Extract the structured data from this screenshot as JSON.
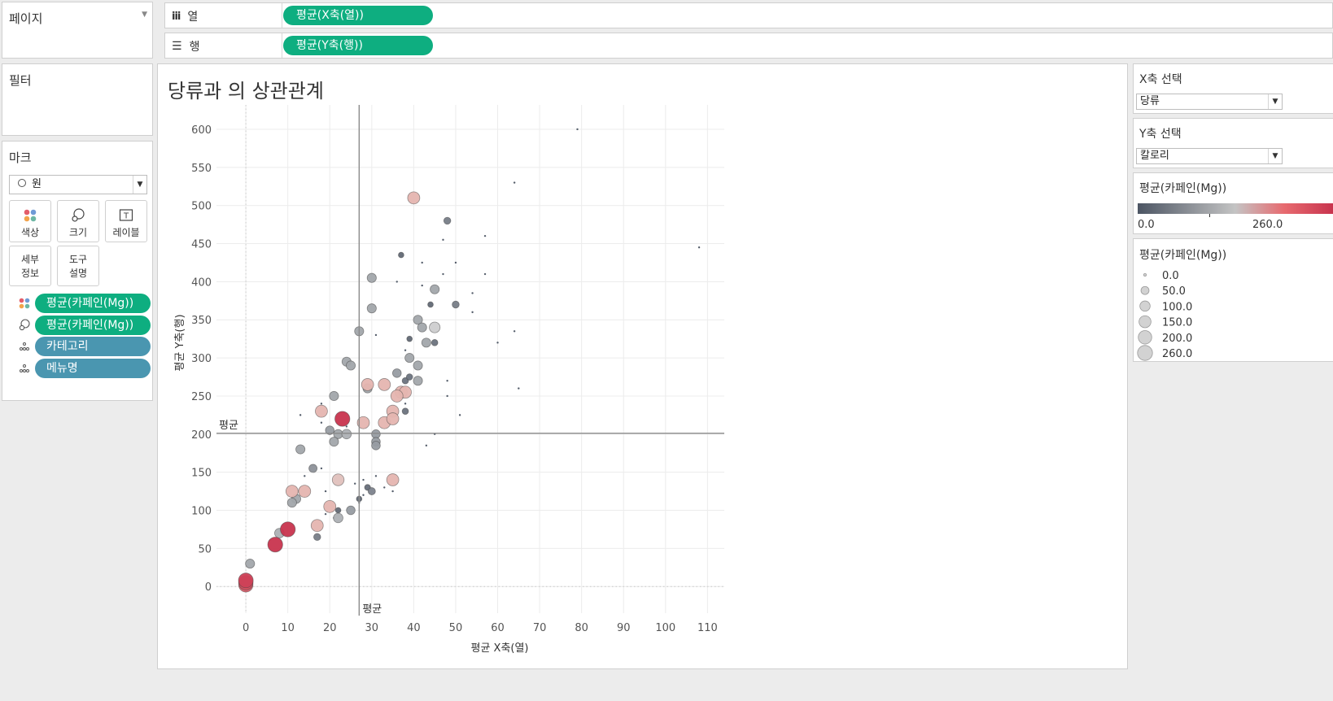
{
  "pages_card": {
    "title": "페이지"
  },
  "shelves": {
    "columns": {
      "label": "열",
      "pill": "평균(X축(열))"
    },
    "rows": {
      "label": "행",
      "pill": "평균(Y축(행))"
    }
  },
  "filters_card": {
    "title": "필터"
  },
  "marks_card": {
    "title": "마크",
    "mark_type": "원",
    "buttons": {
      "color": "색상",
      "size": "크기",
      "label": "레이블",
      "detail_1": "세부",
      "detail_2": "정보",
      "tooltip_1": "도구",
      "tooltip_2": "설명"
    },
    "fields": [
      {
        "icon": "color-icon",
        "label": "평균(카페인(Mg))",
        "color": "#0eae80"
      },
      {
        "icon": "size-icon",
        "label": "평균(카페인(Mg))",
        "color": "#0eae80"
      },
      {
        "icon": "detail-icon",
        "label": "카테고리",
        "color": "#4a96b0"
      },
      {
        "icon": "detail-icon",
        "label": "메뉴명",
        "color": "#4a96b0"
      }
    ]
  },
  "sheet": {
    "title": "당류과 의 상관관계",
    "ref_label_x": "평균",
    "ref_label_y": "평균"
  },
  "chart_data": {
    "type": "scatter",
    "xlabel": "평균 X축(열)",
    "ylabel": "평균 Y축(행)",
    "xlim": [
      -7,
      114
    ],
    "ylim": [
      -35,
      632
    ],
    "x_ticks": [
      0,
      10,
      20,
      30,
      40,
      50,
      60,
      70,
      80,
      90,
      100,
      110
    ],
    "y_ticks": [
      0,
      50,
      100,
      150,
      200,
      250,
      300,
      350,
      400,
      450,
      500,
      550,
      600
    ],
    "reference_lines": {
      "x_average": 27,
      "y_average": 201
    },
    "grid": true,
    "size_field": "caffeine_mg",
    "color_field": "caffeine_mg",
    "color_range": [
      "#4c5563",
      "#d8d8d8",
      "#c8344e"
    ],
    "points": [
      {
        "x": 79,
        "y": 600,
        "caffeine_mg": 0
      },
      {
        "x": 108,
        "y": 445,
        "caffeine_mg": 0
      },
      {
        "x": 64,
        "y": 530,
        "caffeine_mg": 0
      },
      {
        "x": 57,
        "y": 460,
        "caffeine_mg": 0
      },
      {
        "x": 47,
        "y": 455,
        "caffeine_mg": 0
      },
      {
        "x": 42,
        "y": 425,
        "caffeine_mg": 0
      },
      {
        "x": 50,
        "y": 425,
        "caffeine_mg": 0
      },
      {
        "x": 47,
        "y": 410,
        "caffeine_mg": 0
      },
      {
        "x": 57,
        "y": 410,
        "caffeine_mg": 0
      },
      {
        "x": 36,
        "y": 400,
        "caffeine_mg": 0
      },
      {
        "x": 42,
        "y": 395,
        "caffeine_mg": 0
      },
      {
        "x": 54,
        "y": 385,
        "caffeine_mg": 0
      },
      {
        "x": 54,
        "y": 360,
        "caffeine_mg": 0
      },
      {
        "x": 64,
        "y": 335,
        "caffeine_mg": 0
      },
      {
        "x": 31,
        "y": 330,
        "caffeine_mg": 0
      },
      {
        "x": 60,
        "y": 320,
        "caffeine_mg": 0
      },
      {
        "x": 38,
        "y": 310,
        "caffeine_mg": 0
      },
      {
        "x": 48,
        "y": 270,
        "caffeine_mg": 0
      },
      {
        "x": 65,
        "y": 260,
        "caffeine_mg": 0
      },
      {
        "x": 48,
        "y": 250,
        "caffeine_mg": 0
      },
      {
        "x": 38,
        "y": 240,
        "caffeine_mg": 0
      },
      {
        "x": 18,
        "y": 240,
        "caffeine_mg": 0
      },
      {
        "x": 51,
        "y": 225,
        "caffeine_mg": 0
      },
      {
        "x": 13,
        "y": 225,
        "caffeine_mg": 0
      },
      {
        "x": 18,
        "y": 215,
        "caffeine_mg": 0
      },
      {
        "x": 45,
        "y": 200,
        "caffeine_mg": 0
      },
      {
        "x": 43,
        "y": 185,
        "caffeine_mg": 0
      },
      {
        "x": 18,
        "y": 155,
        "caffeine_mg": 0
      },
      {
        "x": 14,
        "y": 145,
        "caffeine_mg": 0
      },
      {
        "x": 31,
        "y": 145,
        "caffeine_mg": 0
      },
      {
        "x": 28,
        "y": 140,
        "caffeine_mg": 0
      },
      {
        "x": 26,
        "y": 135,
        "caffeine_mg": 0
      },
      {
        "x": 33,
        "y": 130,
        "caffeine_mg": 0
      },
      {
        "x": 19,
        "y": 125,
        "caffeine_mg": 0
      },
      {
        "x": 35,
        "y": 125,
        "caffeine_mg": 0
      },
      {
        "x": 28,
        "y": 120,
        "caffeine_mg": 0
      },
      {
        "x": 27,
        "y": 110,
        "caffeine_mg": 0
      },
      {
        "x": 19,
        "y": 95,
        "caffeine_mg": 0
      },
      {
        "x": 21,
        "y": 90,
        "caffeine_mg": 0
      },
      {
        "x": 24,
        "y": 210,
        "caffeine_mg": 0
      },
      {
        "x": 37,
        "y": 435,
        "caffeine_mg": 20
      },
      {
        "x": 48,
        "y": 480,
        "caffeine_mg": 40
      },
      {
        "x": 44,
        "y": 370,
        "caffeine_mg": 20
      },
      {
        "x": 50,
        "y": 370,
        "caffeine_mg": 40
      },
      {
        "x": 39,
        "y": 325,
        "caffeine_mg": 20
      },
      {
        "x": 45,
        "y": 320,
        "caffeine_mg": 30
      },
      {
        "x": 38,
        "y": 270,
        "caffeine_mg": 30
      },
      {
        "x": 39,
        "y": 275,
        "caffeine_mg": 30
      },
      {
        "x": 38,
        "y": 230,
        "caffeine_mg": 30
      },
      {
        "x": 29,
        "y": 130,
        "caffeine_mg": 25
      },
      {
        "x": 30,
        "y": 125,
        "caffeine_mg": 45
      },
      {
        "x": 27,
        "y": 115,
        "caffeine_mg": 20
      },
      {
        "x": 22,
        "y": 100,
        "caffeine_mg": 20
      },
      {
        "x": 17,
        "y": 65,
        "caffeine_mg": 40
      },
      {
        "x": 30,
        "y": 405,
        "caffeine_mg": 80
      },
      {
        "x": 30,
        "y": 365,
        "caffeine_mg": 80
      },
      {
        "x": 27,
        "y": 335,
        "caffeine_mg": 80
      },
      {
        "x": 41,
        "y": 350,
        "caffeine_mg": 80
      },
      {
        "x": 42,
        "y": 340,
        "caffeine_mg": 80
      },
      {
        "x": 45,
        "y": 390,
        "caffeine_mg": 80
      },
      {
        "x": 43,
        "y": 320,
        "caffeine_mg": 80
      },
      {
        "x": 39,
        "y": 300,
        "caffeine_mg": 80
      },
      {
        "x": 24,
        "y": 295,
        "caffeine_mg": 80
      },
      {
        "x": 25,
        "y": 290,
        "caffeine_mg": 80
      },
      {
        "x": 41,
        "y": 290,
        "caffeine_mg": 80
      },
      {
        "x": 36,
        "y": 280,
        "caffeine_mg": 70
      },
      {
        "x": 41,
        "y": 270,
        "caffeine_mg": 80
      },
      {
        "x": 29,
        "y": 260,
        "caffeine_mg": 80
      },
      {
        "x": 21,
        "y": 250,
        "caffeine_mg": 80
      },
      {
        "x": 20,
        "y": 205,
        "caffeine_mg": 70
      },
      {
        "x": 22,
        "y": 200,
        "caffeine_mg": 80
      },
      {
        "x": 24,
        "y": 200,
        "caffeine_mg": 90
      },
      {
        "x": 31,
        "y": 200,
        "caffeine_mg": 70
      },
      {
        "x": 31,
        "y": 190,
        "caffeine_mg": 70
      },
      {
        "x": 21,
        "y": 190,
        "caffeine_mg": 80
      },
      {
        "x": 31,
        "y": 185,
        "caffeine_mg": 70
      },
      {
        "x": 13,
        "y": 180,
        "caffeine_mg": 80
      },
      {
        "x": 16,
        "y": 155,
        "caffeine_mg": 60
      },
      {
        "x": 12,
        "y": 115,
        "caffeine_mg": 80
      },
      {
        "x": 11,
        "y": 110,
        "caffeine_mg": 80
      },
      {
        "x": 25,
        "y": 100,
        "caffeine_mg": 70
      },
      {
        "x": 22,
        "y": 90,
        "caffeine_mg": 90
      },
      {
        "x": 8,
        "y": 70,
        "caffeine_mg": 90
      },
      {
        "x": 1,
        "y": 30,
        "caffeine_mg": 80
      },
      {
        "x": 45,
        "y": 340,
        "caffeine_mg": 120
      },
      {
        "x": 22,
        "y": 140,
        "caffeine_mg": 150
      },
      {
        "x": 40,
        "y": 510,
        "caffeine_mg": 160
      },
      {
        "x": 29,
        "y": 265,
        "caffeine_mg": 160
      },
      {
        "x": 33,
        "y": 265,
        "caffeine_mg": 160
      },
      {
        "x": 37,
        "y": 255,
        "caffeine_mg": 160
      },
      {
        "x": 38,
        "y": 255,
        "caffeine_mg": 160
      },
      {
        "x": 36,
        "y": 250,
        "caffeine_mg": 160
      },
      {
        "x": 35,
        "y": 230,
        "caffeine_mg": 160
      },
      {
        "x": 18,
        "y": 230,
        "caffeine_mg": 160
      },
      {
        "x": 28,
        "y": 215,
        "caffeine_mg": 160
      },
      {
        "x": 33,
        "y": 215,
        "caffeine_mg": 160
      },
      {
        "x": 35,
        "y": 220,
        "caffeine_mg": 160
      },
      {
        "x": 35,
        "y": 140,
        "caffeine_mg": 160
      },
      {
        "x": 11,
        "y": 125,
        "caffeine_mg": 160
      },
      {
        "x": 14,
        "y": 125,
        "caffeine_mg": 160
      },
      {
        "x": 20,
        "y": 105,
        "caffeine_mg": 160
      },
      {
        "x": 17,
        "y": 80,
        "caffeine_mg": 160
      },
      {
        "x": 0,
        "y": 5,
        "caffeine_mg": 160
      },
      {
        "x": 23,
        "y": 220,
        "caffeine_mg": 260
      },
      {
        "x": 10,
        "y": 75,
        "caffeine_mg": 260
      },
      {
        "x": 7,
        "y": 55,
        "caffeine_mg": 260
      },
      {
        "x": 0,
        "y": 8,
        "caffeine_mg": 250
      },
      {
        "x": 0,
        "y": 5,
        "caffeine_mg": 240
      },
      {
        "x": 0,
        "y": 2,
        "caffeine_mg": 230
      }
    ]
  },
  "parameters": {
    "x_axis": {
      "title": "X축 선택",
      "value": "당류"
    },
    "y_axis": {
      "title": "Y축 선택",
      "value": "칼로리"
    }
  },
  "color_legend": {
    "title": "평균(카페인(Mg))",
    "min": "0.0",
    "max": "260.0"
  },
  "size_legend": {
    "title": "평균(카페인(Mg))",
    "entries": [
      {
        "label": "0.0",
        "value": 0
      },
      {
        "label": "50.0",
        "value": 50
      },
      {
        "label": "100.0",
        "value": 100
      },
      {
        "label": "150.0",
        "value": 150
      },
      {
        "label": "200.0",
        "value": 200
      },
      {
        "label": "260.0",
        "value": 260
      }
    ]
  }
}
